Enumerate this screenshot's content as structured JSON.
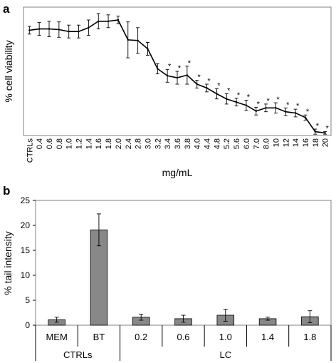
{
  "chart_data": [
    {
      "panel": "a",
      "type": "line",
      "xlabel": "mg/mL",
      "ylabel": "% cell viability",
      "y_tick_labels_shown": false,
      "categories": [
        "CTRLs",
        "0.4",
        "0.6",
        "0.8",
        "1.0",
        "1.2",
        "1.4",
        "1.6",
        "1.8",
        "2.0",
        "2.4",
        "2.8",
        "3.0",
        "3.2",
        "3.4",
        "3.6",
        "3.8",
        "4.0",
        "4.4",
        "4.8",
        "5.2",
        "5.6",
        "6.0",
        "7.0",
        "8.0",
        "10",
        "12",
        "14",
        "16",
        "18",
        "20"
      ],
      "values": [
        82,
        83,
        83,
        82.5,
        81,
        81,
        84,
        89,
        89,
        90,
        74.5,
        74,
        67.5,
        52,
        46.5,
        45,
        47,
        40,
        37,
        32.5,
        28.5,
        26,
        23.5,
        19,
        21.5,
        21.5,
        18.5,
        17.5,
        14,
        3,
        2
      ],
      "errors": [
        3,
        5,
        6,
        6,
        5,
        5,
        6,
        6,
        5,
        3,
        14,
        10,
        5,
        4,
        5,
        5,
        7,
        3,
        3,
        4,
        4,
        3,
        4,
        3,
        3,
        4,
        3,
        3,
        2,
        2,
        1
      ],
      "significance_marker": "*",
      "significant_categories": [
        "3.4",
        "3.6",
        "3.8",
        "4.0",
        "4.4",
        "4.8",
        "5.2",
        "5.6",
        "6.0",
        "7.0",
        "8.0",
        "10",
        "12",
        "14",
        "16",
        "18",
        "20"
      ],
      "ylim": [
        0,
        100
      ],
      "grid": false
    },
    {
      "panel": "b",
      "type": "bar",
      "ylabel": "% tail intensity",
      "ylim": [
        0,
        25
      ],
      "yticks": [
        "0",
        "5",
        "10",
        "15",
        "20",
        "25"
      ],
      "categories": [
        "MEM",
        "BT",
        "0.2",
        "0.6",
        "1.0",
        "1.4",
        "1.8"
      ],
      "groups": [
        {
          "label": "CTRLs",
          "members": [
            "MEM",
            "BT"
          ]
        },
        {
          "label": "LC",
          "members": [
            "0.2",
            "0.6",
            "1.0",
            "1.4",
            "1.8"
          ]
        }
      ],
      "values": [
        1.1,
        19.1,
        1.6,
        1.3,
        2.0,
        1.3,
        1.7
      ],
      "errors": [
        0.5,
        3.2,
        0.6,
        0.7,
        1.2,
        0.3,
        1.2
      ],
      "bar_color": "#888888",
      "grid": false
    }
  ]
}
